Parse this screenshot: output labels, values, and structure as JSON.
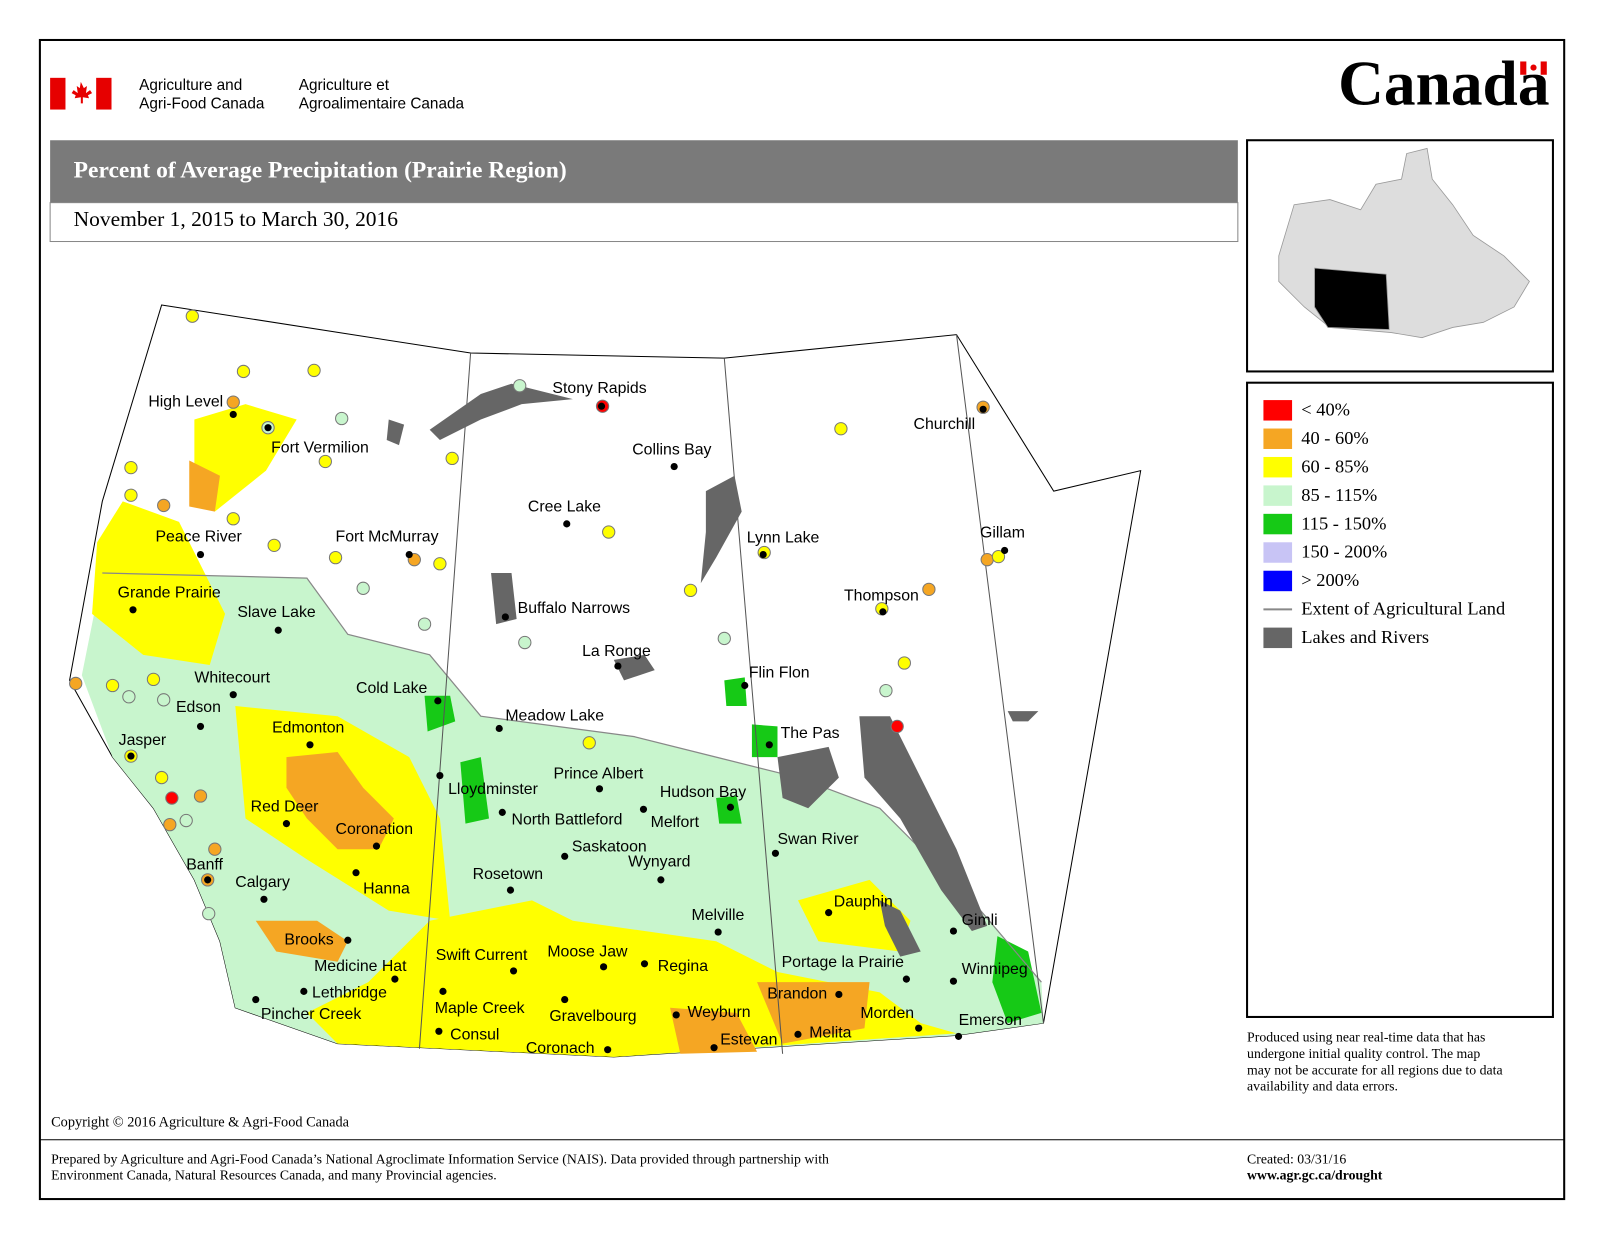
{
  "header": {
    "dept_en": [
      "Agriculture and",
      "Agri-Food Canada"
    ],
    "dept_fr": [
      "Agriculture et",
      "Agroalimentaire Canada"
    ],
    "wordmark": "Canada"
  },
  "title": "Percent of Average Precipitation (Prairie Region)",
  "subtitle": "November 1, 2015 to March 30, 2016",
  "legend": [
    {
      "label": "< 40%",
      "color": "#ff0000"
    },
    {
      "label": "40 - 60%",
      "color": "#f5a623"
    },
    {
      "label": "60 - 85%",
      "color": "#ffff00"
    },
    {
      "label": "85 - 115%",
      "color": "#c8f5cd"
    },
    {
      "label": "115 - 150%",
      "color": "#16c916"
    },
    {
      "label": "150 - 200%",
      "color": "#c8c4f5"
    },
    {
      "label": "> 200%",
      "color": "#0000ff"
    },
    {
      "label": "Extent of Agricultural Land",
      "color": "#888888"
    },
    {
      "label": "Lakes and Rivers",
      "color": "#666666"
    }
  ],
  "cities": [
    "High Level",
    "Fort Vermilion",
    "Peace River",
    "Fort McMurray",
    "Grande Prairie",
    "Slave Lake",
    "Whitecourt",
    "Edson",
    "Jasper",
    "Edmonton",
    "Cold Lake",
    "Meadow Lake",
    "Lloydminster",
    "Red Deer",
    "Coronation",
    "Banff",
    "Calgary",
    "Hanna",
    "Brooks",
    "Medicine Hat",
    "Lethbridge",
    "Pincher Creek",
    "Stony Rapids",
    "Collins Bay",
    "Cree Lake",
    "Buffalo Narrows",
    "La Ronge",
    "Prince Albert",
    "North Battleford",
    "Melfort",
    "Hudson Bay",
    "Saskatoon",
    "Wynyard",
    "Rosetown",
    "Melville",
    "Swift Current",
    "Moose Jaw",
    "Regina",
    "Maple Creek",
    "Gravelbourg",
    "Consul",
    "Coronach",
    "Weyburn",
    "Estevan",
    "Lynn Lake",
    "Flin Flon",
    "The Pas",
    "Thompson",
    "Churchill",
    "Gillam",
    "Swan River",
    "Dauphin",
    "Portage la Prairie",
    "Brandon",
    "Gimli",
    "Winnipeg",
    "Morden",
    "Melita",
    "Emerson"
  ],
  "note": [
    "Produced using near real-time data that has",
    "undergone initial quality control.  The map",
    "may not be accurate for all regions due to data",
    "availability and data errors."
  ],
  "copyright": "Copyright © 2016 Agriculture & Agri-Food Canada",
  "prepared": [
    "Prepared by Agriculture and Agri-Food Canada’s National Agroclimate Information Service (NAIS).   Data provided through partnership with",
    "Environment Canada, Natural Resources Canada, and many Provincial agencies."
  ],
  "created": "Created: 03/31/16",
  "url": "www.agr.gc.ca/drought"
}
